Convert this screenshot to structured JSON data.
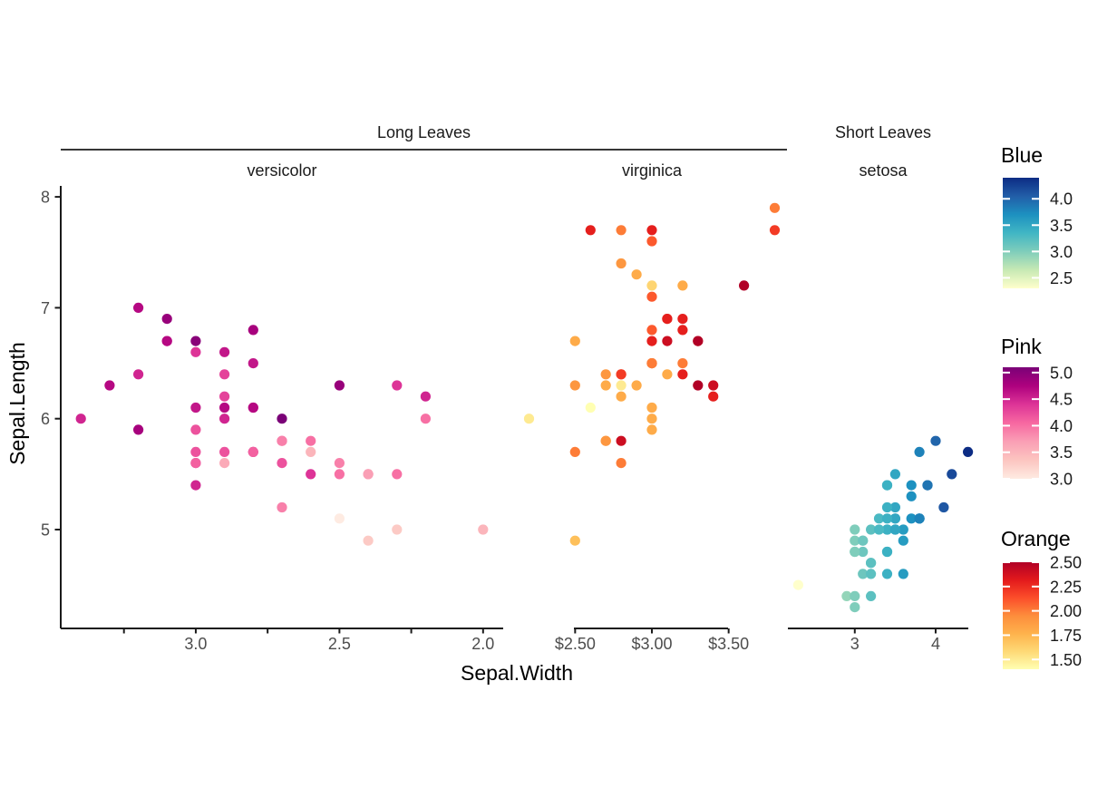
{
  "chart_data": {
    "type": "scatter",
    "xlabel": "Sepal.Width",
    "ylabel": "Sepal.Length",
    "ylim": [
      4.12,
      8.08
    ],
    "y_ticks": [
      {
        "v": 8,
        "label": "8"
      },
      {
        "v": 7,
        "label": "7"
      },
      {
        "v": 6,
        "label": "6"
      },
      {
        "v": 5,
        "label": "5"
      }
    ],
    "outer_strips": [
      {
        "label": "Long Leaves",
        "panels": [
          0,
          1
        ],
        "nest_line": true
      },
      {
        "label": "Short Leaves",
        "panels": [
          2
        ],
        "nest_line": false
      }
    ],
    "facets": [
      {
        "strip": "versicolor",
        "legend": "Pink",
        "x_reversed": true,
        "xlim": [
          3.47,
          1.93
        ],
        "x_ticks": [
          {
            "v": 3.25,
            "label": ""
          },
          {
            "v": 3.0,
            "label": "3.0"
          },
          {
            "v": 2.75,
            "label": ""
          },
          {
            "v": 2.5,
            "label": "2.5"
          },
          {
            "v": 2.25,
            "label": ""
          },
          {
            "v": 2.0,
            "label": "2.0"
          }
        ],
        "points": [
          [
            3.2,
            7,
            4.7
          ],
          [
            3.2,
            6.4,
            4.5
          ],
          [
            3.1,
            6.9,
            4.9
          ],
          [
            2.3,
            5.5,
            4
          ],
          [
            2.8,
            6.5,
            4.6
          ],
          [
            2.8,
            5.7,
            4.5
          ],
          [
            3.3,
            6.3,
            4.7
          ],
          [
            2.4,
            4.9,
            3.3
          ],
          [
            2.9,
            6.6,
            4.6
          ],
          [
            2.7,
            5.2,
            3.9
          ],
          [
            2,
            5,
            3.5
          ],
          [
            3,
            5.9,
            4.2
          ],
          [
            2.2,
            6,
            4
          ],
          [
            2.9,
            6.1,
            4.7
          ],
          [
            2.9,
            5.6,
            3.6
          ],
          [
            3.1,
            6.7,
            4.4
          ],
          [
            3,
            5.6,
            4.5
          ],
          [
            2.7,
            5.8,
            4.1
          ],
          [
            2.2,
            6.2,
            4.5
          ],
          [
            2.5,
            5.6,
            3.9
          ],
          [
            3.2,
            5.9,
            4.8
          ],
          [
            2.8,
            6.1,
            4
          ],
          [
            2.5,
            6.3,
            4.9
          ],
          [
            2.8,
            6.1,
            4.7
          ],
          [
            2.9,
            6.4,
            4.3
          ],
          [
            3,
            6.6,
            4.4
          ],
          [
            2.8,
            6.8,
            4.8
          ],
          [
            3,
            6.7,
            5
          ],
          [
            2.9,
            6,
            4.5
          ],
          [
            2.6,
            5.7,
            3.5
          ],
          [
            2.4,
            5.5,
            3.8
          ],
          [
            2.4,
            5.5,
            3.7
          ],
          [
            2.7,
            5.8,
            3.9
          ],
          [
            2.7,
            6,
            5.1
          ],
          [
            3,
            5.4,
            4.5
          ],
          [
            3.4,
            6,
            4.5
          ],
          [
            3.1,
            6.7,
            4.7
          ],
          [
            2.3,
            6.3,
            4.4
          ],
          [
            3,
            5.6,
            4.1
          ],
          [
            2.5,
            5.5,
            4
          ],
          [
            2.6,
            5.5,
            4.4
          ],
          [
            3,
            6.1,
            4.6
          ],
          [
            2.6,
            5.8,
            4
          ],
          [
            2.3,
            5,
            3.3
          ],
          [
            2.7,
            5.6,
            4.2
          ],
          [
            3,
            5.7,
            4.2
          ],
          [
            2.9,
            5.7,
            4.2
          ],
          [
            2.9,
            6.2,
            4.3
          ],
          [
            2.5,
            5.1,
            3
          ],
          [
            2.8,
            5.7,
            4.1
          ]
        ]
      },
      {
        "strip": "virginica",
        "legend": "Orange",
        "x_reversed": false,
        "xlim": [
          2.12,
          3.88
        ],
        "axis_capped": true,
        "x_ticks": [
          {
            "v": 2.5,
            "label": "$2.50"
          },
          {
            "v": 3.0,
            "label": "$3.00"
          },
          {
            "v": 3.5,
            "label": "$3.50"
          }
        ],
        "points": [
          [
            3.3,
            6.3,
            2.5
          ],
          [
            2.7,
            5.8,
            1.9
          ],
          [
            3,
            7.1,
            2.1
          ],
          [
            2.9,
            6.3,
            1.8
          ],
          [
            3,
            6.5,
            2.2
          ],
          [
            3,
            7.6,
            2.1
          ],
          [
            2.5,
            4.9,
            1.7
          ],
          [
            2.9,
            7.3,
            1.8
          ],
          [
            2.5,
            6.7,
            1.8
          ],
          [
            3.6,
            7.2,
            2.5
          ],
          [
            3.2,
            6.5,
            2
          ],
          [
            2.7,
            6.4,
            1.9
          ],
          [
            3,
            6.8,
            2.1
          ],
          [
            2.5,
            5.7,
            2
          ],
          [
            2.8,
            5.8,
            2.4
          ],
          [
            3.2,
            6.4,
            2.3
          ],
          [
            3,
            6.5,
            1.8
          ],
          [
            3.8,
            7.7,
            2.2
          ],
          [
            2.6,
            7.7,
            2.3
          ],
          [
            2.2,
            6,
            1.5
          ],
          [
            3.2,
            6.9,
            2.3
          ],
          [
            2.8,
            5.6,
            2
          ],
          [
            2.8,
            7.7,
            2
          ],
          [
            2.7,
            6.3,
            1.8
          ],
          [
            3.3,
            6.7,
            2.1
          ],
          [
            3.2,
            7.2,
            1.8
          ],
          [
            2.8,
            6.2,
            1.8
          ],
          [
            3,
            6.1,
            1.8
          ],
          [
            2.8,
            6.4,
            2.1
          ],
          [
            3,
            7.2,
            1.6
          ],
          [
            2.8,
            7.4,
            1.9
          ],
          [
            3.8,
            7.9,
            2
          ],
          [
            2.8,
            6.4,
            2.2
          ],
          [
            2.8,
            6.3,
            1.5
          ],
          [
            2.6,
            6.1,
            1.4
          ],
          [
            3,
            7.7,
            2.3
          ],
          [
            3.4,
            6.3,
            2.4
          ],
          [
            3.1,
            6.4,
            1.8
          ],
          [
            3,
            6,
            1.8
          ],
          [
            3.1,
            6.9,
            2.1
          ],
          [
            3.1,
            6.7,
            2.4
          ],
          [
            3.1,
            6.9,
            2.3
          ],
          [
            2.7,
            5.8,
            1.9
          ],
          [
            3.2,
            6.8,
            2.3
          ],
          [
            3.3,
            6.7,
            2.5
          ],
          [
            3,
            6.7,
            2.3
          ],
          [
            2.5,
            6.3,
            1.9
          ],
          [
            3,
            6.5,
            2
          ],
          [
            3.4,
            6.2,
            2.3
          ],
          [
            3,
            5.9,
            1.8
          ]
        ]
      },
      {
        "strip": "setosa",
        "legend": "Blue",
        "x_reversed": false,
        "xlim": [
          2.195,
          4.505
        ],
        "x_ticks": [
          {
            "v": 3,
            "label": "3"
          },
          {
            "v": 4,
            "label": "4"
          }
        ],
        "points": [
          [
            3.5,
            5.1
          ],
          [
            3,
            4.9
          ],
          [
            3.2,
            4.7
          ],
          [
            3.1,
            4.6
          ],
          [
            3.6,
            5
          ],
          [
            3.9,
            5.4
          ],
          [
            3.4,
            4.6
          ],
          [
            3.4,
            5
          ],
          [
            2.9,
            4.4
          ],
          [
            3.1,
            4.9
          ],
          [
            3.7,
            5.4
          ],
          [
            3.4,
            4.8
          ],
          [
            3,
            4.8
          ],
          [
            3,
            4.3
          ],
          [
            4,
            5.8
          ],
          [
            4.4,
            5.7
          ],
          [
            3.9,
            5.4
          ],
          [
            3.5,
            5.1
          ],
          [
            3.8,
            5.7
          ],
          [
            3.8,
            5.1
          ],
          [
            3.4,
            5.4
          ],
          [
            3.7,
            5.1
          ],
          [
            3.6,
            4.6
          ],
          [
            3.3,
            5.1
          ],
          [
            3.4,
            4.8
          ],
          [
            3,
            5
          ],
          [
            3.4,
            5
          ],
          [
            3.5,
            5.2
          ],
          [
            3.4,
            5.2
          ],
          [
            3.2,
            4.7
          ],
          [
            3.1,
            4.8
          ],
          [
            3.4,
            5.4
          ],
          [
            4.1,
            5.2
          ],
          [
            4.2,
            5.5
          ],
          [
            3.1,
            4.9
          ],
          [
            3.2,
            5
          ],
          [
            3.5,
            5.5
          ],
          [
            3.6,
            4.9
          ],
          [
            3,
            4.4
          ],
          [
            3.4,
            5.1
          ],
          [
            3.5,
            5
          ],
          [
            2.3,
            4.5
          ],
          [
            3.2,
            4.4
          ],
          [
            3.5,
            5
          ],
          [
            3.8,
            5.1
          ],
          [
            3,
            4.8
          ],
          [
            3.8,
            5.1
          ],
          [
            3.2,
            4.6
          ],
          [
            3.7,
            5.3
          ],
          [
            3.3,
            5
          ]
        ]
      }
    ],
    "legends": [
      {
        "title": "Blue",
        "domain": [
          2.3,
          4.4
        ],
        "colors": [
          "#ffffcc",
          "#c7e9b4",
          "#7fcdbb",
          "#41b6c4",
          "#1d91c0",
          "#225ea8",
          "#0c2c84"
        ],
        "ticks": [
          {
            "v": 4.0,
            "label": "4.0"
          },
          {
            "v": 3.5,
            "label": "3.5"
          },
          {
            "v": 3.0,
            "label": "3.0"
          },
          {
            "v": 2.5,
            "label": "2.5"
          }
        ]
      },
      {
        "title": "Pink",
        "domain": [
          3.0,
          5.1
        ],
        "colors": [
          "#feebe2",
          "#fcc5c0",
          "#fa9fb5",
          "#f768a1",
          "#dd3497",
          "#ae017e",
          "#7a0177"
        ],
        "ticks": [
          {
            "v": 5.0,
            "label": "5.0"
          },
          {
            "v": 4.5,
            "label": "4.5"
          },
          {
            "v": 4.0,
            "label": "4.0"
          },
          {
            "v": 3.5,
            "label": "3.5"
          },
          {
            "v": 3.0,
            "label": "3.0"
          }
        ]
      },
      {
        "title": "Orange",
        "domain": [
          1.4,
          2.5
        ],
        "colors": [
          "#ffffb2",
          "#fed976",
          "#feb24c",
          "#fd8d3c",
          "#fc4e2a",
          "#e31a1c",
          "#b10026"
        ],
        "ticks": [
          {
            "v": 2.5,
            "label": "2.50"
          },
          {
            "v": 2.25,
            "label": "2.25"
          },
          {
            "v": 2.0,
            "label": "2.00"
          },
          {
            "v": 1.75,
            "label": "1.75"
          },
          {
            "v": 1.5,
            "label": "1.50"
          }
        ]
      }
    ],
    "style": {
      "background": "#ffffff",
      "axis_line_color": "#1a1a1a",
      "tick_label_color": "#4d4d4d",
      "title_color": "#000000",
      "strip_text_color": "#1a1a1a",
      "legend_label_color": "#1a1a1a"
    }
  }
}
